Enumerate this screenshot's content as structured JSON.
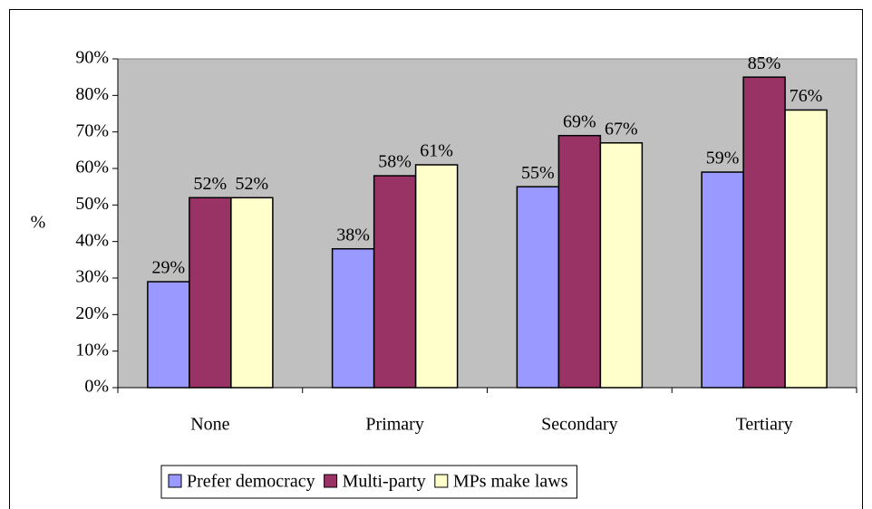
{
  "chart_data": {
    "type": "bar",
    "y_label": "%",
    "categories": [
      "None",
      "Primary",
      "Secondary",
      "Tertiary"
    ],
    "series": [
      {
        "name": "Prefer democracy",
        "color": "#9999ff",
        "values": [
          29,
          38,
          55,
          59
        ],
        "value_labels": [
          "29%",
          "38%",
          "55%",
          "59%"
        ]
      },
      {
        "name": "Multi-party",
        "color": "#993366",
        "values": [
          52,
          58,
          69,
          85
        ],
        "value_labels": [
          "52%",
          "58%",
          "69%",
          "85%"
        ]
      },
      {
        "name": "MPs make laws",
        "color": "#ffffcc",
        "values": [
          52,
          61,
          67,
          76
        ],
        "value_labels": [
          "52%",
          "61%",
          "67%",
          "76%"
        ]
      }
    ],
    "ylim": [
      0,
      90
    ],
    "yticks": [
      {
        "value": 0,
        "label": "0%"
      },
      {
        "value": 10,
        "label": "10%"
      },
      {
        "value": 20,
        "label": "20%"
      },
      {
        "value": 30,
        "label": "30%"
      },
      {
        "value": 40,
        "label": "40%"
      },
      {
        "value": 50,
        "label": "50%"
      },
      {
        "value": 60,
        "label": "60%"
      },
      {
        "value": 70,
        "label": "70%"
      },
      {
        "value": 80,
        "label": "80%"
      },
      {
        "value": 90,
        "label": "90%"
      }
    ],
    "plot_background": "#c0c0c0",
    "legend": "bottom"
  }
}
